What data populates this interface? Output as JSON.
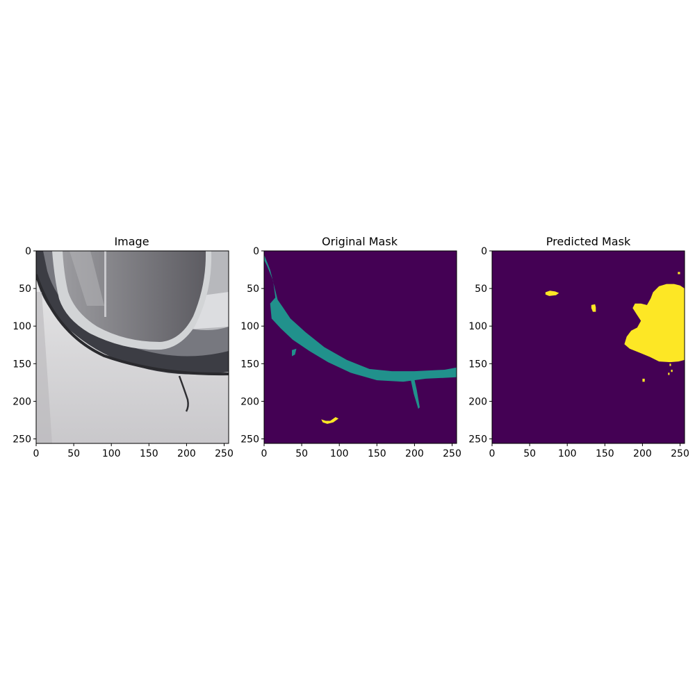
{
  "figure": {
    "panels": [
      {
        "title": "Image"
      },
      {
        "title": "Original Mask"
      },
      {
        "title": "Predicted Mask"
      }
    ]
  },
  "colors": {
    "background": "#440154",
    "teal": "#21918c",
    "yellow": "#fde725"
  },
  "chart_data": [
    {
      "type": "heatmap",
      "title": "Image",
      "content": "photo (car bumper and headlight)",
      "xlim": [
        0,
        256
      ],
      "ylim": [
        256,
        0
      ],
      "xticks": [
        0,
        50,
        100,
        150,
        200,
        250
      ],
      "yticks": [
        0,
        50,
        100,
        150,
        200,
        250
      ],
      "grid": false
    },
    {
      "type": "heatmap",
      "title": "Original Mask",
      "xlim": [
        0,
        256
      ],
      "ylim": [
        256,
        0
      ],
      "xticks": [
        0,
        50,
        100,
        150,
        200,
        250
      ],
      "yticks": [
        0,
        50,
        100,
        150,
        200,
        250
      ],
      "grid": false,
      "regions": [
        {
          "class": "teal",
          "points": [
            [
              0,
              5
            ],
            [
              8,
              25
            ],
            [
              18,
              65
            ],
            [
              25,
              75
            ],
            [
              35,
              90
            ],
            [
              55,
              108
            ],
            [
              80,
              128
            ],
            [
              110,
              145
            ],
            [
              140,
              157
            ],
            [
              170,
              160
            ],
            [
              200,
              160
            ],
            [
              240,
              158
            ],
            [
              256,
              155
            ],
            [
              256,
              168
            ],
            [
              215,
              170
            ],
            [
              185,
              174
            ],
            [
              150,
              172
            ],
            [
              115,
              162
            ],
            [
              85,
              148
            ],
            [
              60,
              133
            ],
            [
              38,
              118
            ],
            [
              22,
              103
            ],
            [
              10,
              90
            ],
            [
              8,
              70
            ],
            [
              15,
              62
            ],
            [
              12,
              40
            ],
            [
              4,
              20
            ],
            [
              0,
              12
            ]
          ]
        },
        {
          "class": "teal",
          "points": [
            [
              193,
              162
            ],
            [
              198,
              162
            ],
            [
              203,
              185
            ],
            [
              207,
              208
            ],
            [
              205,
              210
            ],
            [
              199,
              190
            ]
          ]
        },
        {
          "class": "teal",
          "points": [
            [
              37,
              132
            ],
            [
              43,
              130
            ],
            [
              41,
              138
            ],
            [
              37,
              140
            ]
          ]
        },
        {
          "class": "yellow",
          "points": [
            [
              76,
              224
            ],
            [
              82,
              226
            ],
            [
              88,
              226
            ],
            [
              95,
              221
            ],
            [
              99,
              223
            ],
            [
              92,
              228
            ],
            [
              84,
              230
            ],
            [
              78,
              228
            ]
          ]
        }
      ]
    },
    {
      "type": "heatmap",
      "title": "Predicted Mask",
      "xlim": [
        0,
        256
      ],
      "ylim": [
        256,
        0
      ],
      "xticks": [
        0,
        50,
        100,
        150,
        200,
        250
      ],
      "yticks": [
        0,
        50,
        100,
        150,
        200,
        250
      ],
      "grid": false,
      "regions": [
        {
          "class": "yellow",
          "points": [
            [
              214,
              55
            ],
            [
              222,
              47
            ],
            [
              232,
              44
            ],
            [
              242,
              44
            ],
            [
              250,
              46
            ],
            [
              256,
              50
            ],
            [
              256,
              145
            ],
            [
              248,
              147
            ],
            [
              237,
              148
            ],
            [
              222,
              147
            ],
            [
              210,
              141
            ],
            [
              198,
              136
            ],
            [
              183,
              130
            ],
            [
              176,
              124
            ],
            [
              179,
              114
            ],
            [
              185,
              106
            ],
            [
              193,
              102
            ],
            [
              198,
              93
            ],
            [
              192,
              84
            ],
            [
              187,
              76
            ],
            [
              190,
              70
            ],
            [
              198,
              70
            ],
            [
              206,
              72
            ],
            [
              211,
              63
            ]
          ]
        },
        {
          "class": "yellow",
          "points": [
            [
              71,
              55
            ],
            [
              77,
              53
            ],
            [
              84,
              54
            ],
            [
              89,
              56
            ],
            [
              85,
              59
            ],
            [
              76,
              60
            ],
            [
              71,
              58
            ]
          ]
        },
        {
          "class": "yellow",
          "points": [
            [
              132,
              72
            ],
            [
              137,
              71
            ],
            [
              138,
              75
            ],
            [
              138,
              81
            ],
            [
              134,
              81
            ],
            [
              132,
              76
            ]
          ]
        },
        {
          "class": "yellow",
          "points": [
            [
              247,
              28
            ],
            [
              250,
              28
            ],
            [
              250,
              31
            ],
            [
              247,
              31
            ]
          ]
        },
        {
          "class": "yellow",
          "points": [
            [
              200,
              170
            ],
            [
              203,
              170
            ],
            [
              203,
              174
            ],
            [
              200,
              174
            ]
          ]
        },
        {
          "class": "yellow",
          "points": [
            [
              236,
              150
            ],
            [
              238,
              150
            ],
            [
              238,
              153
            ],
            [
              236,
              153
            ]
          ]
        },
        {
          "class": "yellow",
          "points": [
            [
              238,
              158
            ],
            [
              240,
              158
            ],
            [
              240,
              161
            ],
            [
              238,
              161
            ]
          ]
        },
        {
          "class": "yellow",
          "points": [
            [
              234,
              162
            ],
            [
              236,
              162
            ],
            [
              236,
              165
            ],
            [
              234,
              165
            ]
          ]
        }
      ]
    }
  ]
}
